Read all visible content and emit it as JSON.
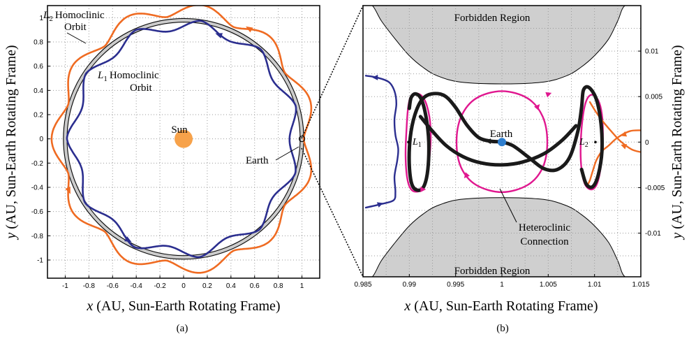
{
  "colors": {
    "l1_orbit": "#2b2e8f",
    "l2_orbit": "#ef6b22",
    "heteroclinic": "#1a1a1a",
    "periodic": "#e0178f",
    "forbidden": "#cfcfcf",
    "sun": "#f7a24a",
    "earth": "#2f7fcf",
    "ring": "#cccccc"
  },
  "chart_data": [
    {
      "panel": "(a)",
      "type": "line",
      "xlabel_var": "x",
      "xlabel": "(AU, Sun-Earth Rotating Frame)",
      "ylabel_var": "y",
      "ylabel": "(AU, Sun-Earth Rotating Frame)",
      "xlim": [
        -1.15,
        1.15
      ],
      "ylim": [
        -1.15,
        1.1
      ],
      "xticks": [
        -1,
        -0.8,
        -0.6,
        -0.4,
        -0.2,
        0,
        0.2,
        0.4,
        0.6,
        0.8,
        1
      ],
      "yticks": [
        -1,
        -0.8,
        -0.6,
        -0.4,
        -0.2,
        0,
        0.2,
        0.4,
        0.6,
        0.8,
        1
      ],
      "xtick_labels": [
        "-1",
        "-0.8",
        "-0.6",
        "-0.4",
        "-0.2",
        "0",
        "0.2",
        "0.4",
        "0.6",
        "0.8",
        "1"
      ],
      "ytick_labels": [
        "-1",
        "-0.8",
        "-0.6",
        "-0.4",
        "-0.2",
        "0",
        "0.2",
        "0.4",
        "0.6",
        "0.8",
        "1"
      ],
      "grid": true,
      "ring": {
        "inner_radius": 0.985,
        "outer_radius": 1.015
      },
      "sun": {
        "x": 0,
        "y": 0,
        "label": "Sun"
      },
      "earth": {
        "x": 1,
        "y": 0,
        "label": "Earth"
      },
      "series": [
        {
          "key": "l2",
          "label_sub": "2",
          "label_pre": "L",
          "label_line1": "Homoclinic",
          "label_line2": "Orbit",
          "base_radius": 1.015,
          "amplitude": 0.1,
          "lobes": 11,
          "phase_deg": 0
        },
        {
          "key": "l1",
          "label_sub": "1",
          "label_pre": "L",
          "label_line1": "Homoclinic",
          "label_line2": "Orbit",
          "base_radius": 0.985,
          "amplitude": 0.09,
          "lobes": 11,
          "phase_deg": 16
        }
      ]
    },
    {
      "panel": "(b)",
      "type": "line",
      "xlabel_var": "x",
      "xlabel": "(AU, Sun-Earth Rotating Frame)",
      "ylabel_var": "y",
      "ylabel": "(AU, Sun-Earth Rotating Frame)",
      "xlim": [
        0.985,
        1.015
      ],
      "ylim": [
        -0.0148,
        0.015
      ],
      "xticks": [
        0.985,
        0.99,
        0.995,
        1,
        1.005,
        1.01,
        1.015
      ],
      "xtick_labels": [
        "0.985",
        "0.99",
        "0.995",
        "1",
        "1.005",
        "1.01",
        "1.015"
      ],
      "yticks": [
        -0.01,
        -0.005,
        0,
        0.005,
        0.01
      ],
      "ytick_labels": [
        "-0.01",
        "-0.005",
        "0",
        "0.005",
        "0.01"
      ],
      "grid": true,
      "forbidden_label": "Forbidden Region",
      "earth": {
        "x": 1,
        "y": 0,
        "label": "Earth"
      },
      "l1": {
        "x": 0.9899,
        "y": 0,
        "label_pre": "L",
        "label_sub": "1"
      },
      "l2": {
        "x": 1.0101,
        "y": 0,
        "label_pre": "L",
        "label_sub": "2"
      },
      "heteroclinic_label_line1": "Heteroclinic",
      "heteroclinic_label_line2": "Connection",
      "forbidden_upper": [
        [
          0.985,
          0.015
        ],
        [
          0.986,
          0.015
        ],
        [
          0.987,
          0.0133
        ],
        [
          0.9885,
          0.0113
        ],
        [
          0.99,
          0.0095
        ],
        [
          0.9915,
          0.0082
        ],
        [
          0.993,
          0.0073
        ],
        [
          0.9955,
          0.0066
        ],
        [
          1.0,
          0.0064
        ],
        [
          1.0045,
          0.0066
        ],
        [
          1.007,
          0.0073
        ],
        [
          1.0085,
          0.0082
        ],
        [
          1.01,
          0.0095
        ],
        [
          1.0115,
          0.0113
        ],
        [
          1.0125,
          0.0133
        ],
        [
          1.0133,
          0.015
        ],
        [
          1.015,
          0.015
        ]
      ],
      "forbidden_lower": [
        [
          0.985,
          -0.0148
        ],
        [
          0.986,
          -0.0148
        ],
        [
          0.987,
          -0.013
        ],
        [
          0.9885,
          -0.011
        ],
        [
          0.99,
          -0.0092
        ],
        [
          0.9915,
          -0.0079
        ],
        [
          0.993,
          -0.007
        ],
        [
          0.9955,
          -0.0063
        ],
        [
          1.0,
          -0.0061
        ],
        [
          1.0045,
          -0.0063
        ],
        [
          1.007,
          -0.007
        ],
        [
          1.0085,
          -0.0079
        ],
        [
          1.01,
          -0.0092
        ],
        [
          1.0115,
          -0.011
        ],
        [
          1.0125,
          -0.013
        ],
        [
          1.0133,
          -0.0148
        ],
        [
          1.015,
          -0.0148
        ]
      ],
      "series": [
        {
          "key": "l1_manifold",
          "name": "",
          "points": [
            [
              0.9853,
              0.0073
            ],
            [
              0.9865,
              0.0071
            ],
            [
              0.9878,
              0.0066
            ],
            [
              0.9884,
              0.0056
            ],
            [
              0.9886,
              0.0042
            ],
            [
              0.9884,
              0.0025
            ],
            [
              0.9885,
              0.0008
            ],
            [
              0.9888,
              -0.0007
            ],
            [
              0.9887,
              -0.002
            ],
            [
              0.9884,
              -0.0038
            ],
            [
              0.9885,
              -0.0055
            ],
            [
              0.9883,
              -0.0064
            ],
            [
              0.987,
              -0.0068
            ],
            [
              0.9853,
              -0.0072
            ]
          ]
        },
        {
          "key": "l1_periodic",
          "name": "",
          "points": [
            [
              0.9903,
              0.0052
            ],
            [
              0.9912,
              0.0052
            ],
            [
              0.9919,
              0.004
            ],
            [
              0.9923,
              0.0015
            ],
            [
              0.9922,
              -0.0015
            ],
            [
              0.9918,
              -0.004
            ],
            [
              0.9912,
              -0.0053
            ],
            [
              0.9903,
              -0.0053
            ],
            [
              0.9898,
              -0.0041
            ],
            [
              0.9896,
              -0.0015
            ],
            [
              0.9897,
              0.0015
            ],
            [
              0.9899,
              0.004
            ],
            [
              0.9903,
              0.0052
            ]
          ]
        },
        {
          "key": "earth_periodic",
          "name": "",
          "points": [
            [
              1.0,
              0.0056
            ],
            [
              1.0028,
              0.0048
            ],
            [
              1.0044,
              0.0028
            ],
            [
              1.0049,
              0.0
            ],
            [
              1.0044,
              -0.0028
            ],
            [
              1.0028,
              -0.0047
            ],
            [
              1.0,
              -0.0055
            ],
            [
              0.9972,
              -0.0047
            ],
            [
              0.9956,
              -0.0028
            ],
            [
              0.9951,
              0.0
            ],
            [
              0.9956,
              0.0028
            ],
            [
              0.9972,
              0.0048
            ],
            [
              1.0,
              0.0056
            ]
          ]
        },
        {
          "key": "l2_periodic",
          "name": "",
          "points": [
            [
              1.0097,
              0.0052
            ],
            [
              1.0104,
              0.0046
            ],
            [
              1.0108,
              0.003
            ],
            [
              1.0109,
              0.0005
            ],
            [
              1.0107,
              -0.0025
            ],
            [
              1.0103,
              -0.0045
            ],
            [
              1.0097,
              -0.0052
            ],
            [
              1.009,
              -0.0047
            ],
            [
              1.0086,
              -0.003
            ],
            [
              1.0085,
              -0.0005
            ],
            [
              1.0087,
              0.0025
            ],
            [
              1.0091,
              0.0045
            ],
            [
              1.0097,
              0.0052
            ]
          ]
        },
        {
          "key": "l2_manifold",
          "name": "",
          "points": [
            [
              1.015,
              0.0013
            ],
            [
              1.0138,
              0.0012
            ],
            [
              1.0125,
              0.0005
            ],
            [
              1.0115,
              -0.0004
            ],
            [
              1.0108,
              -0.001
            ],
            [
              1.0102,
              -0.002
            ],
            [
              1.0098,
              -0.0032
            ],
            [
              1.0095,
              -0.0042
            ],
            [
              1.0093,
              -0.0046
            ]
          ]
        },
        {
          "key": "l2_manifold_b",
          "name": "",
          "points": [
            [
              1.015,
              -0.0011
            ],
            [
              1.014,
              -0.0008
            ],
            [
              1.0128,
              0.0001
            ],
            [
              1.0118,
              0.0012
            ],
            [
              1.0108,
              0.0024
            ],
            [
              1.0101,
              0.0034
            ],
            [
              1.0095,
              0.0044
            ]
          ]
        },
        {
          "key": "heteroclinic",
          "name": "",
          "points": [
            [
              0.99,
              0.0037
            ],
            [
              0.9902,
              0.0049
            ],
            [
              0.9907,
              0.0053
            ],
            [
              0.9913,
              0.0047
            ],
            [
              0.9918,
              0.0028
            ],
            [
              0.9921,
              0.0
            ],
            [
              0.992,
              -0.003
            ],
            [
              0.9916,
              -0.0048
            ],
            [
              0.991,
              -0.0053
            ],
            [
              0.9903,
              -0.0047
            ],
            [
              0.99,
              -0.0025
            ],
            [
              0.9901,
              0.0005
            ],
            [
              0.9906,
              0.003
            ],
            [
              0.9914,
              0.0047
            ],
            [
              0.9924,
              0.0053
            ],
            [
              0.9938,
              0.0051
            ],
            [
              0.995,
              0.0038
            ],
            [
              0.9962,
              0.0019
            ],
            [
              0.9975,
              0.0005
            ],
            [
              0.9988,
              0.0001
            ],
            [
              1.0,
              0.0
            ],
            [
              1.0012,
              -0.0004
            ],
            [
              1.0028,
              -0.0016
            ],
            [
              1.0045,
              -0.0029
            ],
            [
              1.006,
              -0.003
            ],
            [
              1.0073,
              -0.0017
            ],
            [
              1.0082,
              0.0012
            ],
            [
              1.0086,
              0.0038
            ],
            [
              1.0088,
              0.0057
            ],
            [
              1.0094,
              0.006
            ],
            [
              1.0102,
              0.0047
            ],
            [
              1.0107,
              0.002
            ],
            [
              1.0108,
              -0.001
            ],
            [
              1.0104,
              -0.0036
            ],
            [
              1.0098,
              -0.0049
            ],
            [
              1.0091,
              -0.0046
            ],
            [
              1.0086,
              -0.003
            ]
          ]
        },
        {
          "key": "heteroclinic_b",
          "name": "",
          "points": [
            [
              0.9912,
              0.0028
            ],
            [
              0.9925,
              0.0012
            ],
            [
              0.994,
              -0.0004
            ],
            [
              0.9958,
              -0.0016
            ],
            [
              0.9978,
              -0.0023
            ],
            [
              1.0,
              -0.0025
            ],
            [
              1.0022,
              -0.0022
            ],
            [
              1.0045,
              -0.0013
            ],
            [
              1.0065,
              0.0002
            ],
            [
              1.008,
              0.0018
            ]
          ]
        }
      ]
    }
  ],
  "panel_a_label": "(a)",
  "panel_b_label": "(b)"
}
